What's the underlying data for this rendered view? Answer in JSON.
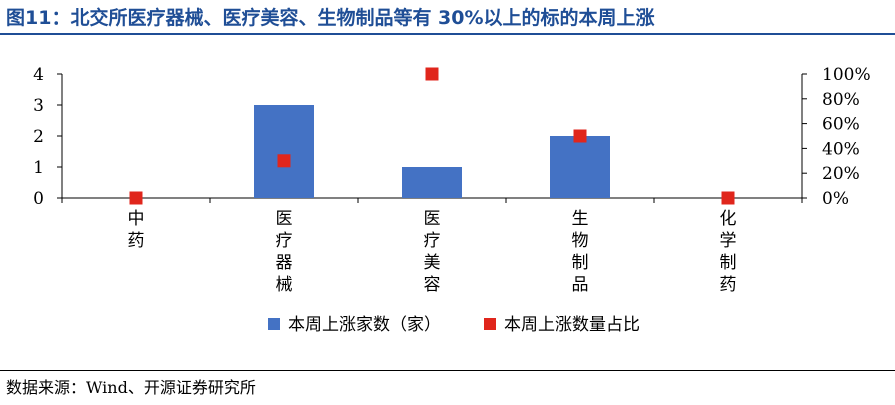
{
  "title": "图11：北交所医疗器械、医疗美容、生物制品等有 30%以上的标的本周上涨",
  "source": "数据来源：Wind、开源证券研究所",
  "colors": {
    "bar": "#4472c4",
    "marker": "#e0261c",
    "title": "#1f4e96"
  },
  "chart_data": {
    "type": "bar",
    "categories": [
      "中药",
      "医疗器械",
      "医疗美容",
      "生物制品",
      "化学制药"
    ],
    "series": [
      {
        "name": "本周上涨家数（家）",
        "type": "bar",
        "axis": "left",
        "values": [
          0,
          3,
          1,
          2,
          0
        ]
      },
      {
        "name": "本周上涨数量占比",
        "type": "scatter",
        "axis": "right",
        "values": [
          0,
          30,
          100,
          50,
          0
        ]
      }
    ],
    "y_left": {
      "ylim": [
        0,
        4
      ],
      "ticks": [
        "0",
        "1",
        "2",
        "3",
        "4"
      ]
    },
    "y_right": {
      "ylim": [
        0,
        100
      ],
      "ticks": [
        "0%",
        "20%",
        "40%",
        "60%",
        "80%",
        "100%"
      ]
    },
    "legend_position": "bottom",
    "grid": false
  }
}
